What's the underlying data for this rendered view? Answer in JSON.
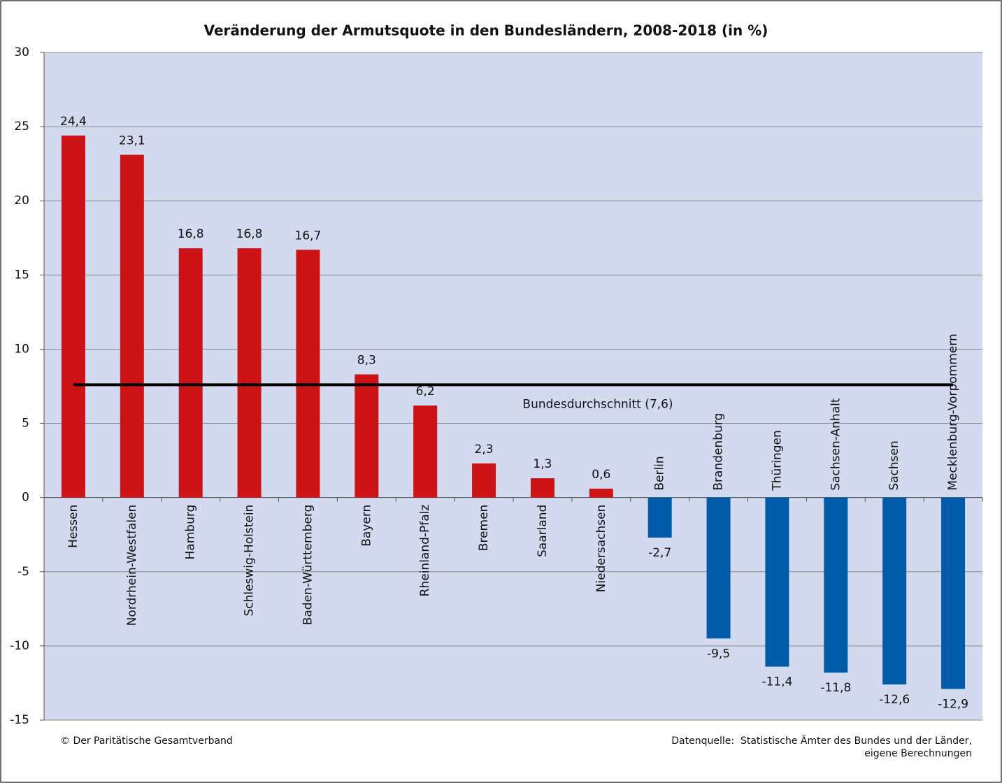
{
  "chart_data": {
    "type": "bar",
    "title": "Veränderung der Armutsquote in den Bundesländern, 2008-2018 (in %)",
    "categories": [
      "Hessen",
      "Nordrhein-Westfalen",
      "Hamburg",
      "Schleswig-Holstein",
      "Baden-Württemberg",
      "Bayern",
      "Rheinland-Pfalz",
      "Bremen",
      "Saarland",
      "Niedersachsen",
      "Berlin",
      "Brandenburg",
      "Thüringen",
      "Sachsen-Anhalt",
      "Sachsen",
      "Mecklenburg-Vorpommern"
    ],
    "values": [
      24.4,
      23.1,
      16.8,
      16.8,
      16.7,
      8.3,
      6.2,
      2.3,
      1.3,
      0.6,
      -2.7,
      -9.5,
      -11.4,
      -11.8,
      -12.6,
      -12.9
    ],
    "value_labels": [
      "24,4",
      "23,1",
      "16,8",
      "16,8",
      "16,7",
      "8,3",
      "6,2",
      "2,3",
      "1,3",
      "0,6",
      "-2,7",
      "-9,5",
      "-11,4",
      "-11,8",
      "-12,6",
      "-12,9"
    ],
    "positive_color": "#cc1417",
    "negative_color": "#005ca9",
    "ylim": [
      -15,
      30
    ],
    "yticks": [
      -15,
      -10,
      -5,
      0,
      5,
      10,
      15,
      20,
      25,
      30
    ],
    "grid": true,
    "average": {
      "value": 7.6,
      "label": "Bundesdurchschnitt (7,6)"
    },
    "footer_left": "© Der Paritätische Gesamtverband",
    "footer_right": [
      "Datenquelle:  Statistische Ämter des Bundes und der Länder,",
      "eigene Berechnungen"
    ]
  }
}
